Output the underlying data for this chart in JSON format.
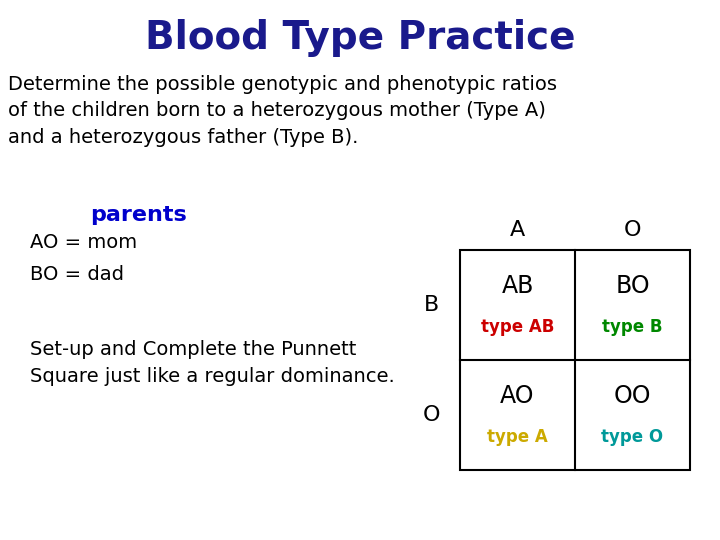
{
  "title": "Blood Type Practice",
  "title_color": "#1a1a8c",
  "title_fontsize": 28,
  "body_text": "Determine the possible genotypic and phenotypic ratios\nof the children born to a heterozygous mother (Type A)\nand a heterozygous father (Type B).",
  "body_fontsize": 14,
  "body_color": "#000000",
  "parents_label": "parents",
  "parents_color": "#0000cc",
  "parents_fontsize": 16,
  "ao_label": "AO = mom",
  "bo_label": "BO = dad",
  "parents_text_color": "#000000",
  "parents_text_fontsize": 14,
  "setup_text": "Set-up and Complete the Punnett\nSquare just like a regular dominance.",
  "setup_fontsize": 14,
  "setup_color": "#000000",
  "col_headers": [
    "A",
    "O"
  ],
  "row_headers": [
    "B",
    "O"
  ],
  "cells": [
    [
      "AB",
      "BO"
    ],
    [
      "AO",
      "OO"
    ]
  ],
  "cell_subtypes": [
    [
      "type AB",
      "type B"
    ],
    [
      "type A",
      "type O"
    ]
  ],
  "subtype_colors": [
    [
      "#cc0000",
      "#008800"
    ],
    [
      "#ccaa00",
      "#009999"
    ]
  ],
  "header_fontsize": 16,
  "cell_fontsize": 17,
  "subtype_fontsize": 12,
  "background_color": "#ffffff"
}
